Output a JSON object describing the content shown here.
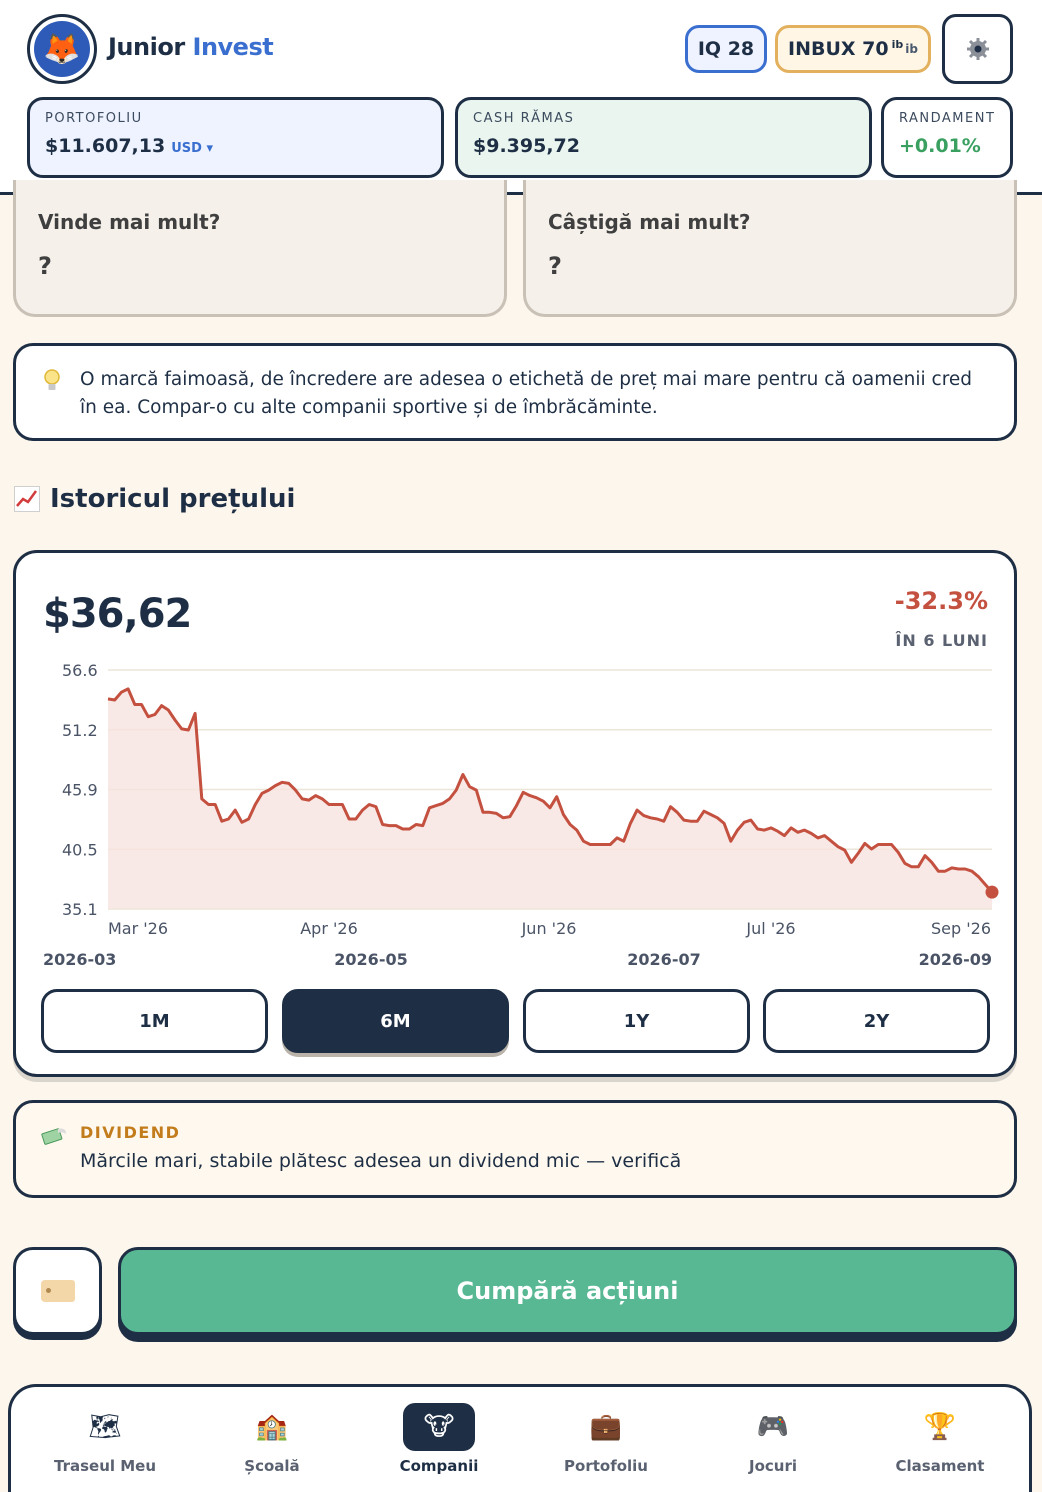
{
  "header": {
    "brand_part1": "Junior",
    "brand_part2": "Invest",
    "iq": "IQ 28",
    "inbux": "INBUX 70",
    "inbux_sup": "ib",
    "inbux_unit": "ib"
  },
  "stats": {
    "portfolio_label": "PORTOFOLIU",
    "portfolio_value": "$11.607,13",
    "portfolio_currency": "USD ▾",
    "cash_label": "CASH RĂMAS",
    "cash_value": "$9.395,72",
    "return_label": "RANDAMENT",
    "return_value": "+0.01%"
  },
  "quiz": [
    {
      "question": "Vinde mai mult?",
      "answer": "?"
    },
    {
      "question": "Câștigă mai mult?",
      "answer": "?"
    }
  ],
  "tip": {
    "text": "O marcă faimoasă, de încredere are adesea o etichetă de preț mai mare pentru că oamenii cred în ea. Compar-o cu alte companii sportive și de îmbrăcăminte."
  },
  "section_title": "Istoricul prețului",
  "chart": {
    "price": "$36,62",
    "change": "-32.3%",
    "period": "ÎN 6 LUNI",
    "ranges": [
      "1M",
      "6M",
      "1Y",
      "2Y"
    ],
    "active_range": "6M"
  },
  "chart_data": {
    "type": "area",
    "y_ticks": [
      "56.6",
      "51.2",
      "45.9",
      "40.5",
      "35.1"
    ],
    "ylim": [
      35.1,
      56.6
    ],
    "x_tick_labels": [
      "Mar '26",
      "Apr '26",
      "Jun '26",
      "Jul '26",
      "Sep '26"
    ],
    "date_labels": [
      "2026-03",
      "2026-05",
      "2026-07",
      "2026-09"
    ],
    "series": [
      {
        "values": [
          54.0,
          53.9,
          54.6,
          54.9,
          53.5,
          53.5,
          52.4,
          52.6,
          53.4,
          53.0,
          52.1,
          51.3,
          51.2,
          52.7,
          45.0,
          44.5,
          44.5,
          43.0,
          43.2,
          44.0,
          42.9,
          43.2,
          44.5,
          45.5,
          45.8,
          46.2,
          46.5,
          46.4,
          45.8,
          45.0,
          44.9,
          45.3,
          45.0,
          44.5,
          44.5,
          44.5,
          43.2,
          43.2,
          44.0,
          44.5,
          44.3,
          42.7,
          42.6,
          42.6,
          42.3,
          42.3,
          42.7,
          42.6,
          44.2,
          44.4,
          44.6,
          45.0,
          45.8,
          47.2,
          46.1,
          45.8,
          43.8,
          43.8,
          43.7,
          43.3,
          43.4,
          44.4,
          45.6,
          45.3,
          45.1,
          44.8,
          44.2,
          45.2,
          43.6,
          42.7,
          42.2,
          41.2,
          40.9,
          40.9,
          40.9,
          40.9,
          41.5,
          41.2,
          42.8,
          44.0,
          43.5,
          43.3,
          43.2,
          43.0,
          44.3,
          43.8,
          43.1,
          43.0,
          43.0,
          43.9,
          43.6,
          43.3,
          42.8,
          41.2,
          42.2,
          42.9,
          43.1,
          42.3,
          42.2,
          42.4,
          42.1,
          41.7,
          42.4,
          42.0,
          42.2,
          41.9,
          41.5,
          41.7,
          41.2,
          40.7,
          40.4,
          39.3,
          40.1,
          41.0,
          40.5,
          40.9,
          40.9,
          40.9,
          40.2,
          39.2,
          38.9,
          38.9,
          39.9,
          39.3,
          38.5,
          38.5,
          38.8,
          38.7,
          38.7,
          38.5,
          38.0,
          37.3,
          36.62
        ]
      }
    ]
  },
  "dividend": {
    "label": "DIVIDEND",
    "text": "Mărcile mari, stabile plătesc adesea un dividend mic — verifică"
  },
  "buy_button": "Cumpără acțiuni",
  "nav": [
    {
      "label": "Traseul Meu",
      "icon": "🗺"
    },
    {
      "label": "Școală",
      "icon": "🏫"
    },
    {
      "label": "Companii",
      "icon": "🐮"
    },
    {
      "label": "Portofoliu",
      "icon": "💼"
    },
    {
      "label": "Jocuri",
      "icon": "🎮"
    },
    {
      "label": "Clasament",
      "icon": "🏆"
    }
  ],
  "colors": {
    "navy": "#1e2f45",
    "accent_blue": "#3a6fd0",
    "green": "#58b894",
    "chart_line": "#c4503f",
    "chart_fill": "#f7e4e0"
  }
}
